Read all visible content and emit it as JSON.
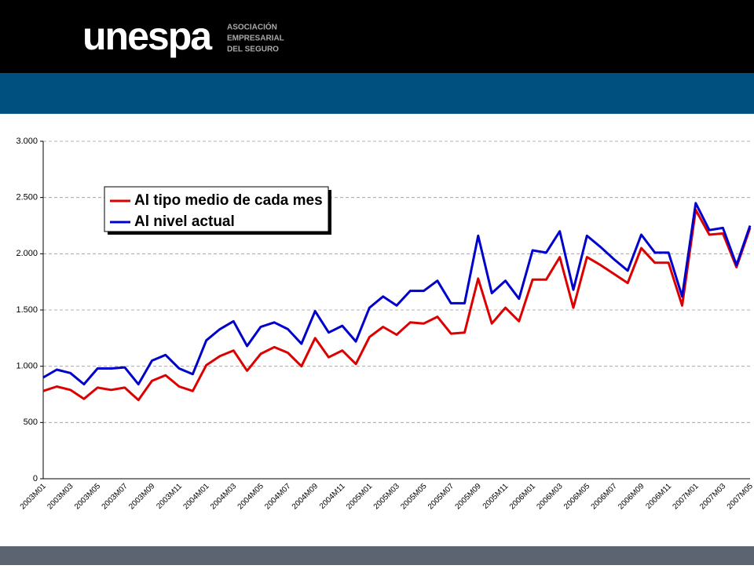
{
  "header": {
    "brand": "unespa",
    "tagline": [
      "ASOCIACIÓN",
      "EMPRESARIAL",
      "DEL SEGURO"
    ]
  },
  "chart_data": {
    "type": "line",
    "categories": [
      "2003M01",
      null,
      "2003M03",
      null,
      "2003M05",
      null,
      "2003M07",
      null,
      "2003M09",
      null,
      "2003M11",
      null,
      "2004M01",
      null,
      "2004M03",
      null,
      "2004M05",
      null,
      "2004M07",
      null,
      "2004M09",
      null,
      "2004M11",
      null,
      "2005M01",
      null,
      "2005M03",
      null,
      "2005M05",
      null,
      "2005M07",
      null,
      "2005M09",
      null,
      "2005M11",
      null,
      "2006M01",
      null,
      "2006M03",
      null,
      "2006M05",
      null,
      "2006M07",
      null,
      "2006M09",
      null,
      "2006M11",
      null,
      "2007M01",
      null,
      "2007M03",
      null,
      "2007M05"
    ],
    "series": [
      {
        "name": "Al tipo medio de cada mes",
        "color": "#dd0000",
        "values": [
          780,
          820,
          790,
          710,
          810,
          790,
          810,
          700,
          870,
          920,
          820,
          780,
          1010,
          1090,
          1140,
          960,
          1110,
          1170,
          1120,
          1000,
          1250,
          1080,
          1140,
          1020,
          1260,
          1350,
          1280,
          1390,
          1380,
          1440,
          1290,
          1300,
          1780,
          1380,
          1520,
          1400,
          1770,
          1770,
          1970,
          1520,
          1970,
          1900,
          1820,
          1740,
          2050,
          1920,
          1920,
          1540,
          2390,
          2170,
          2180,
          1880,
          2230
        ]
      },
      {
        "name": "Al nivel actual",
        "color": "#0000cc",
        "values": [
          900,
          970,
          940,
          840,
          980,
          980,
          990,
          840,
          1050,
          1100,
          980,
          930,
          1230,
          1330,
          1400,
          1180,
          1350,
          1390,
          1330,
          1200,
          1490,
          1300,
          1360,
          1220,
          1520,
          1620,
          1540,
          1670,
          1670,
          1760,
          1560,
          1560,
          2160,
          1650,
          1760,
          1600,
          2030,
          2010,
          2200,
          1680,
          2160,
          2060,
          1950,
          1850,
          2170,
          2010,
          2010,
          1620,
          2450,
          2210,
          2230,
          1900,
          2250
        ]
      }
    ],
    "ylim": [
      0,
      3000
    ],
    "yticks": [
      0,
      500,
      {
        "value": 1000,
        "label": "1.000"
      },
      {
        "value": 1500,
        "label": "1.500"
      },
      {
        "value": 2000,
        "label": "2.000"
      },
      {
        "value": 2500,
        "label": "2.500"
      },
      {
        "value": 3000,
        "label": "3.000"
      }
    ],
    "grid": true
  }
}
